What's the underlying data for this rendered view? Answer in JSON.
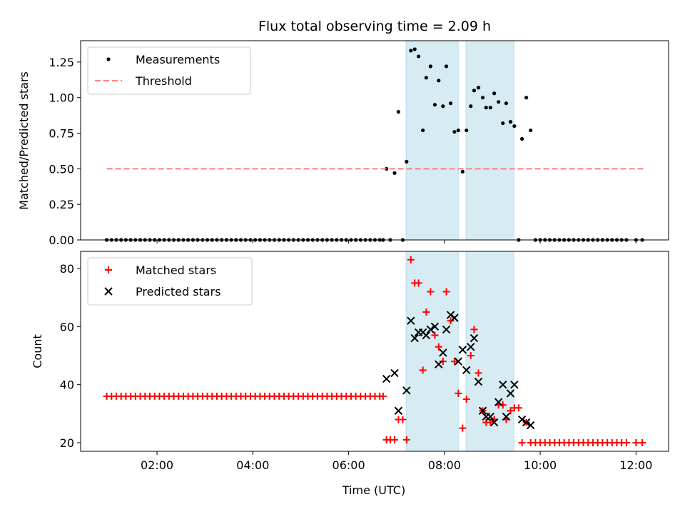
{
  "chart_data": [
    {
      "type": "scatter",
      "title": "Flux total observing time = 2.09 h",
      "xlabel": "",
      "ylabel": "Matched/Predicted stars",
      "xlim_hours": [
        0.405,
        12.68
      ],
      "ylim": [
        0,
        1.4
      ],
      "yticks": [
        0,
        0.25,
        0.5,
        0.75,
        1.0,
        1.25
      ],
      "ytick_labels": [
        "0.00",
        "0.25",
        "0.50",
        "0.75",
        "1.00",
        "1.25"
      ],
      "legend_placement": "top-left",
      "shaded_intervals_hours": [
        [
          7.2,
          8.29
        ],
        [
          8.45,
          9.45
        ]
      ],
      "shade_color": "#add8e6",
      "series": [
        {
          "name": "Measurements",
          "marker": "dot",
          "color": "#000000",
          "x_hours": [
            0.95,
            1.05,
            1.15,
            1.25,
            1.35,
            1.45,
            1.55,
            1.65,
            1.75,
            1.85,
            1.95,
            2.05,
            2.15,
            2.25,
            2.35,
            2.45,
            2.55,
            2.65,
            2.75,
            2.85,
            2.95,
            3.05,
            3.15,
            3.25,
            3.35,
            3.45,
            3.55,
            3.65,
            3.75,
            3.85,
            3.95,
            4.05,
            4.15,
            4.25,
            4.35,
            4.45,
            4.55,
            4.65,
            4.75,
            4.85,
            4.95,
            5.05,
            5.15,
            5.25,
            5.35,
            5.45,
            5.55,
            5.65,
            5.75,
            5.85,
            5.95,
            6.05,
            6.15,
            6.25,
            6.35,
            6.45,
            6.55,
            6.65,
            6.72,
            6.79,
            6.87,
            6.96,
            7.04,
            7.13,
            7.21,
            7.3,
            7.38,
            7.46,
            7.55,
            7.62,
            7.71,
            7.8,
            7.88,
            7.97,
            8.04,
            8.13,
            8.21,
            8.29,
            8.38,
            8.46,
            8.55,
            8.62,
            8.71,
            8.8,
            8.87,
            8.96,
            9.04,
            9.13,
            9.22,
            9.29,
            9.38,
            9.46,
            9.55,
            9.62,
            9.71,
            9.8,
            9.9,
            10.0,
            10.1,
            10.2,
            10.3,
            10.4,
            10.5,
            10.6,
            10.7,
            10.8,
            10.9,
            11.0,
            11.1,
            11.2,
            11.3,
            11.4,
            11.5,
            11.6,
            11.7,
            11.8,
            12.0,
            12.13
          ],
          "y": [
            0,
            0,
            0,
            0,
            0,
            0,
            0,
            0,
            0,
            0,
            0,
            0,
            0,
            0,
            0,
            0,
            0,
            0,
            0,
            0,
            0,
            0,
            0,
            0,
            0,
            0,
            0,
            0,
            0,
            0,
            0,
            0,
            0,
            0,
            0,
            0,
            0,
            0,
            0,
            0,
            0,
            0,
            0,
            0,
            0,
            0,
            0,
            0,
            0,
            0,
            0,
            0,
            0,
            0,
            0,
            0,
            0,
            0,
            0,
            0.5,
            0,
            0.47,
            0.9,
            0,
            0.55,
            1.33,
            1.34,
            1.29,
            0.77,
            1.14,
            1.22,
            0.95,
            1.12,
            0.94,
            1.22,
            0.96,
            0.76,
            0.77,
            0.48,
            0.77,
            0.94,
            1.05,
            1.07,
            1.0,
            0.93,
            0.93,
            1.03,
            0.97,
            0.82,
            0.96,
            0.83,
            0.8,
            0,
            0.71,
            1.0,
            0.77,
            0,
            0,
            0,
            0,
            0,
            0,
            0,
            0,
            0,
            0,
            0,
            0,
            0,
            0,
            0,
            0,
            0,
            0,
            0,
            0,
            0,
            0
          ]
        },
        {
          "name": "Threshold",
          "marker": "dashed-line",
          "color": "#ff7f7f",
          "x_hours": [
            0.95,
            12.15
          ],
          "y": [
            0.5,
            0.5
          ]
        }
      ]
    },
    {
      "type": "scatter",
      "title": "",
      "xlabel": "Time (UTC)",
      "ylabel": "Count",
      "xlim_hours": [
        0.405,
        12.68
      ],
      "ylim": [
        17.05,
        85.9
      ],
      "yticks": [
        20,
        40,
        60,
        80
      ],
      "ytick_labels": [
        "20",
        "40",
        "60",
        "80"
      ],
      "xticks_hours": [
        2,
        4,
        6,
        8,
        10,
        12
      ],
      "xtick_labels": [
        "02:00",
        "04:00",
        "06:00",
        "08:00",
        "10:00",
        "12:00"
      ],
      "legend_placement": "top-left",
      "shaded_intervals_hours": [
        [
          7.2,
          8.29
        ],
        [
          8.45,
          9.45
        ]
      ],
      "series": [
        {
          "name": "Matched stars",
          "marker": "plus",
          "color": "#ff0000",
          "x_hours": [
            0.95,
            1.05,
            1.15,
            1.25,
            1.35,
            1.45,
            1.55,
            1.65,
            1.75,
            1.85,
            1.95,
            2.05,
            2.15,
            2.25,
            2.35,
            2.45,
            2.55,
            2.65,
            2.75,
            2.85,
            2.95,
            3.05,
            3.15,
            3.25,
            3.35,
            3.45,
            3.55,
            3.65,
            3.75,
            3.85,
            3.95,
            4.05,
            4.15,
            4.25,
            4.35,
            4.45,
            4.55,
            4.65,
            4.75,
            4.85,
            4.95,
            5.05,
            5.15,
            5.25,
            5.35,
            5.45,
            5.55,
            5.65,
            5.75,
            5.85,
            5.95,
            6.05,
            6.15,
            6.25,
            6.35,
            6.45,
            6.55,
            6.65,
            6.72,
            6.79,
            6.87,
            6.96,
            7.04,
            7.13,
            7.21,
            7.3,
            7.38,
            7.46,
            7.55,
            7.62,
            7.71,
            7.8,
            7.88,
            7.97,
            8.04,
            8.13,
            8.21,
            8.29,
            8.38,
            8.46,
            8.55,
            8.62,
            8.71,
            8.8,
            8.87,
            8.96,
            9.04,
            9.13,
            9.22,
            9.29,
            9.38,
            9.46,
            9.55,
            9.62,
            9.71,
            9.8,
            9.9,
            10.0,
            10.1,
            10.2,
            10.3,
            10.4,
            10.5,
            10.6,
            10.7,
            10.8,
            10.9,
            11.0,
            11.1,
            11.2,
            11.3,
            11.4,
            11.5,
            11.6,
            11.7,
            11.8,
            12.0,
            12.13
          ],
          "y": [
            36,
            36,
            36,
            36,
            36,
            36,
            36,
            36,
            36,
            36,
            36,
            36,
            36,
            36,
            36,
            36,
            36,
            36,
            36,
            36,
            36,
            36,
            36,
            36,
            36,
            36,
            36,
            36,
            36,
            36,
            36,
            36,
            36,
            36,
            36,
            36,
            36,
            36,
            36,
            36,
            36,
            36,
            36,
            36,
            36,
            36,
            36,
            36,
            36,
            36,
            36,
            36,
            36,
            36,
            36,
            36,
            36,
            36,
            36,
            21,
            21,
            21,
            28,
            28,
            21,
            83,
            75,
            75,
            45,
            65,
            72,
            57,
            53,
            48,
            72,
            62,
            48,
            37,
            25,
            35,
            50,
            59,
            44,
            31,
            27,
            27,
            28,
            33,
            33,
            28,
            31,
            32,
            32,
            20,
            27,
            20,
            20,
            20,
            20,
            20,
            20,
            20,
            20,
            20,
            20,
            20,
            20,
            20,
            20,
            20,
            20,
            20,
            20,
            20,
            20,
            20,
            20,
            20
          ]
        },
        {
          "name": "Predicted stars",
          "marker": "x",
          "color": "#000000",
          "x_hours": [
            6.79,
            6.96,
            7.04,
            7.21,
            7.3,
            7.38,
            7.46,
            7.55,
            7.62,
            7.71,
            7.8,
            7.88,
            7.97,
            8.04,
            8.13,
            8.21,
            8.29,
            8.38,
            8.46,
            8.55,
            8.62,
            8.71,
            8.8,
            8.87,
            8.96,
            9.04,
            9.13,
            9.22,
            9.29,
            9.38,
            9.46,
            9.62,
            9.71,
            9.8
          ],
          "y": [
            42,
            44,
            31,
            38,
            62,
            56,
            58,
            58,
            57,
            59,
            60,
            47,
            51,
            59,
            64,
            63,
            48,
            52,
            45,
            53,
            56,
            41,
            31,
            29,
            29,
            27,
            34,
            40,
            29,
            37,
            40,
            28,
            27,
            26
          ]
        }
      ]
    }
  ]
}
